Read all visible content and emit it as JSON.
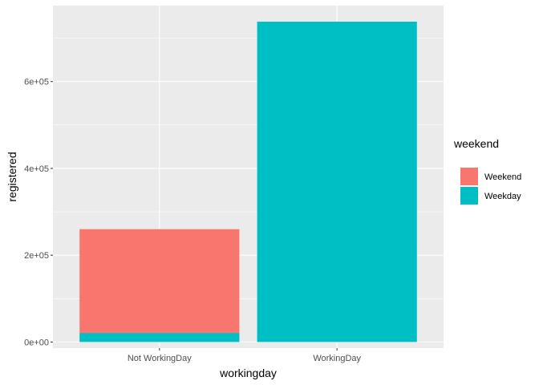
{
  "chart_data": {
    "type": "bar",
    "stacked": true,
    "title": "",
    "xlabel": "workingday",
    "ylabel": "registered",
    "categories": [
      "Not WorkingDay",
      "WorkingDay"
    ],
    "series": [
      {
        "name": "Weekday",
        "values": [
          21000,
          738000
        ],
        "color": "#00BFC4"
      },
      {
        "name": "Weekend",
        "values": [
          239000,
          0
        ],
        "color": "#F8766D"
      }
    ],
    "ylim": [
      -14000,
      775000
    ],
    "yticks": [
      {
        "value": 0,
        "label": "0e+00"
      },
      {
        "value": 200000,
        "label": "2e+05"
      },
      {
        "value": 400000,
        "label": "4e+05"
      },
      {
        "value": 600000,
        "label": "6e+05"
      }
    ],
    "legend": {
      "title": "weekend",
      "placement": "right",
      "entries": [
        {
          "label": "Weekend",
          "color": "#F8766D"
        },
        {
          "label": "Weekday",
          "color": "#00BFC4"
        }
      ]
    },
    "grid": true,
    "panel_background": "#EBEBEB",
    "grid_color": "#FFFFFF"
  }
}
